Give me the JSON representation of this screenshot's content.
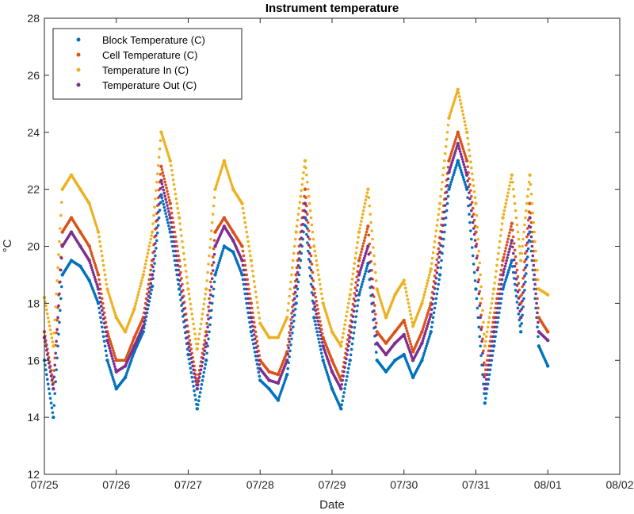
{
  "chart_data": {
    "type": "scatter",
    "title": "Instrument temperature",
    "xlabel": "Date",
    "ylabel": "°C",
    "xlim": [
      "07/25",
      "08/02"
    ],
    "ylim": [
      12,
      28
    ],
    "x_ticks": [
      "07/25",
      "07/26",
      "07/27",
      "07/28",
      "07/29",
      "07/30",
      "07/31",
      "08/01",
      "08/02"
    ],
    "y_ticks": [
      12,
      14,
      16,
      18,
      20,
      22,
      24,
      26,
      28
    ],
    "grid": false,
    "legend_position": "top-left",
    "x": [
      "07/25 00:00",
      "07/25 03:00",
      "07/25 06:00",
      "07/25 09:00",
      "07/25 12:00",
      "07/25 15:00",
      "07/25 18:00",
      "07/25 21:00",
      "07/26 00:00",
      "07/26 03:00",
      "07/26 06:00",
      "07/26 09:00",
      "07/26 12:00",
      "07/26 15:00",
      "07/26 18:00",
      "07/26 21:00",
      "07/27 00:00",
      "07/27 03:00",
      "07/27 06:00",
      "07/27 09:00",
      "07/27 12:00",
      "07/27 15:00",
      "07/27 18:00",
      "07/27 21:00",
      "07/28 00:00",
      "07/28 03:00",
      "07/28 06:00",
      "07/28 09:00",
      "07/28 12:00",
      "07/28 15:00",
      "07/28 18:00",
      "07/28 21:00",
      "07/29 00:00",
      "07/29 03:00",
      "07/29 06:00",
      "07/29 09:00",
      "07/29 12:00",
      "07/29 15:00",
      "07/29 18:00",
      "07/29 21:00",
      "07/30 00:00",
      "07/30 03:00",
      "07/30 06:00",
      "07/30 09:00",
      "07/30 12:00",
      "07/30 15:00",
      "07/30 18:00",
      "07/30 21:00",
      "07/31 00:00",
      "07/31 03:00",
      "07/31 06:00",
      "07/31 09:00",
      "07/31 12:00",
      "07/31 15:00",
      "07/31 18:00",
      "07/31 21:00",
      "08/01 00:00"
    ],
    "series": [
      {
        "name": "Block Temperature (C)",
        "color": "#0072bd",
        "values": [
          16.0,
          14.0,
          19.0,
          19.5,
          19.3,
          18.8,
          18.0,
          16.0,
          15.0,
          15.4,
          16.3,
          17.0,
          18.6,
          21.8,
          20.5,
          18.5,
          16.2,
          14.3,
          16.0,
          19.0,
          20.0,
          19.8,
          19.0,
          17.0,
          15.3,
          15.0,
          14.6,
          15.5,
          18.0,
          21.0,
          17.5,
          16.0,
          15.0,
          14.3,
          16.0,
          18.3,
          19.4,
          16.0,
          15.6,
          16.0,
          16.2,
          15.4,
          16.0,
          17.0,
          19.0,
          22.0,
          23.0,
          22.0,
          18.5,
          14.5,
          16.5,
          18.5,
          19.5,
          17.0,
          20.5,
          16.5,
          15.8
        ]
      },
      {
        "name": "Cell Temperature (C)",
        "color": "#d95319",
        "values": [
          17.0,
          15.2,
          20.5,
          21.0,
          20.5,
          20.0,
          19.0,
          17.0,
          16.0,
          16.0,
          16.8,
          17.5,
          19.5,
          22.8,
          21.5,
          19.5,
          17.0,
          15.2,
          17.0,
          20.5,
          21.0,
          20.5,
          20.0,
          18.0,
          16.0,
          15.6,
          15.5,
          16.3,
          19.0,
          22.0,
          18.5,
          16.8,
          16.0,
          15.3,
          17.2,
          19.5,
          20.7,
          17.0,
          16.6,
          17.0,
          17.4,
          16.3,
          17.0,
          18.0,
          20.3,
          23.0,
          24.0,
          23.0,
          20.5,
          15.5,
          17.5,
          19.5,
          20.8,
          18.0,
          21.5,
          17.5,
          17.0
        ]
      },
      {
        "name": "Temperature In (C)",
        "color": "#edb120",
        "values": [
          18.2,
          16.5,
          22.0,
          22.5,
          22.0,
          21.5,
          20.5,
          18.5,
          17.5,
          17.0,
          17.8,
          19.0,
          20.5,
          24.0,
          23.0,
          21.0,
          18.5,
          16.4,
          18.5,
          22.0,
          23.0,
          22.0,
          21.5,
          19.5,
          17.3,
          16.8,
          16.8,
          17.5,
          20.5,
          23.0,
          20.0,
          18.0,
          17.0,
          16.5,
          18.3,
          20.5,
          22.0,
          18.5,
          17.5,
          18.3,
          18.8,
          17.2,
          18.0,
          19.2,
          21.5,
          24.5,
          25.5,
          24.0,
          21.5,
          16.5,
          18.5,
          21.0,
          22.5,
          19.5,
          22.5,
          18.5,
          18.3
        ]
      },
      {
        "name": "Temperature Out (C)",
        "color": "#7e2f8e",
        "values": [
          16.8,
          15.0,
          20.0,
          20.5,
          20.0,
          19.5,
          18.5,
          16.7,
          15.6,
          15.8,
          16.5,
          17.2,
          19.0,
          22.3,
          21.0,
          19.0,
          16.6,
          15.0,
          16.6,
          20.0,
          20.7,
          20.2,
          19.5,
          17.5,
          15.7,
          15.3,
          15.2,
          16.0,
          18.6,
          21.5,
          18.0,
          16.5,
          15.6,
          15.0,
          16.8,
          19.0,
          20.0,
          16.6,
          16.2,
          16.6,
          16.9,
          16.0,
          16.6,
          17.6,
          19.8,
          22.6,
          23.6,
          22.5,
          20.0,
          15.0,
          17.0,
          19.0,
          20.2,
          17.5,
          21.0,
          17.0,
          16.7
        ]
      }
    ]
  }
}
